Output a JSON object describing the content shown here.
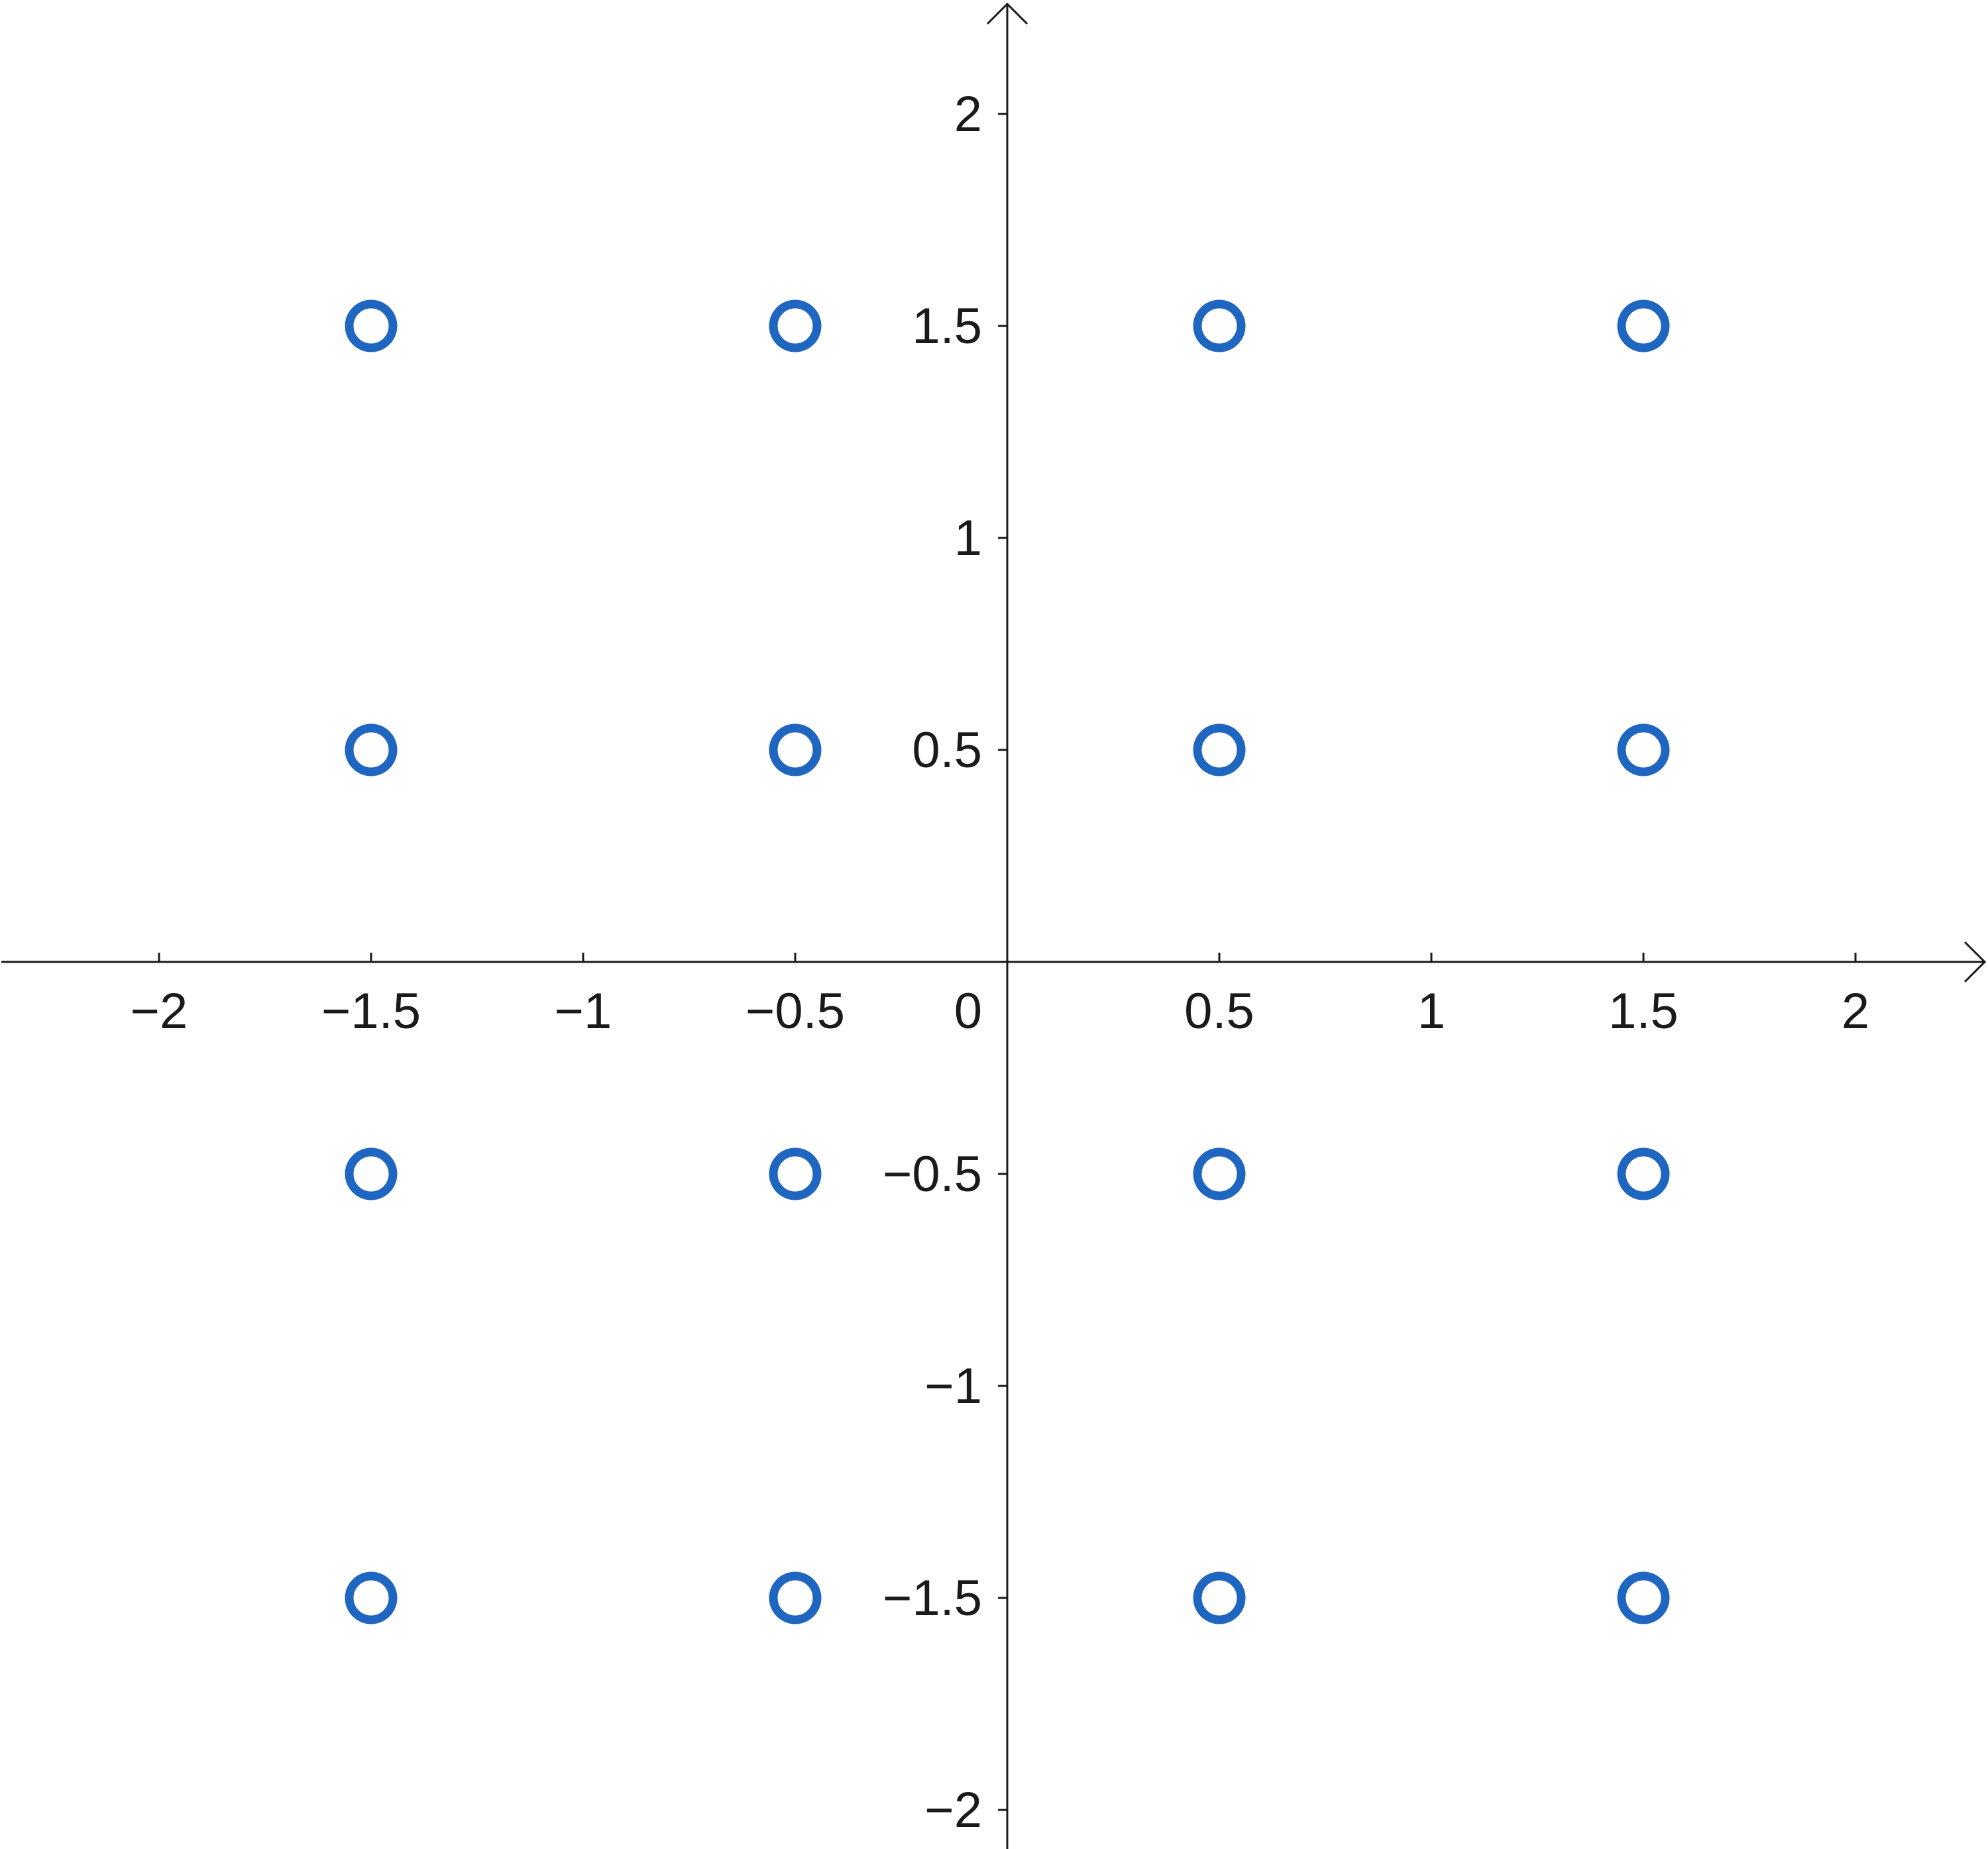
{
  "chart_data": {
    "type": "scatter",
    "title": "",
    "xlabel": "",
    "ylabel": "",
    "xlim": [
      -2.37,
      2.3
    ],
    "ylim": [
      -2.09,
      2.26
    ],
    "grid": false,
    "legend": "none",
    "marker": "open-circle",
    "colors": {
      "point": "#1f66c1",
      "axis": "#1a1a1a"
    },
    "x_ticks": [
      {
        "value": -2,
        "label": "−2"
      },
      {
        "value": -1.5,
        "label": "−1.5"
      },
      {
        "value": -1,
        "label": "−1"
      },
      {
        "value": -0.5,
        "label": "−0.5"
      },
      {
        "value": 0.5,
        "label": "0.5"
      },
      {
        "value": 1,
        "label": "1"
      },
      {
        "value": 1.5,
        "label": "1.5"
      },
      {
        "value": 2,
        "label": "2"
      }
    ],
    "y_ticks": [
      {
        "value": 2,
        "label": "2"
      },
      {
        "value": 1.5,
        "label": "1.5"
      },
      {
        "value": 1,
        "label": "1"
      },
      {
        "value": 0.5,
        "label": "0.5"
      },
      {
        "value": -0.5,
        "label": "−0.5"
      },
      {
        "value": -1,
        "label": "−1"
      },
      {
        "value": -1.5,
        "label": "−1.5"
      },
      {
        "value": -2,
        "label": "−2"
      }
    ],
    "origin_label": "0",
    "series": [
      {
        "points": [
          {
            "x": -1.5,
            "y": 1.5
          },
          {
            "x": -0.5,
            "y": 1.5
          },
          {
            "x": 0.5,
            "y": 1.5
          },
          {
            "x": 1.5,
            "y": 1.5
          },
          {
            "x": -1.5,
            "y": 0.5
          },
          {
            "x": -0.5,
            "y": 0.5
          },
          {
            "x": 0.5,
            "y": 0.5
          },
          {
            "x": 1.5,
            "y": 0.5
          },
          {
            "x": -1.5,
            "y": -0.5
          },
          {
            "x": -0.5,
            "y": -0.5
          },
          {
            "x": 0.5,
            "y": -0.5
          },
          {
            "x": 1.5,
            "y": -0.5
          },
          {
            "x": -1.5,
            "y": -1.5
          },
          {
            "x": -0.5,
            "y": -1.5
          },
          {
            "x": 0.5,
            "y": -1.5
          },
          {
            "x": 1.5,
            "y": -1.5
          }
        ]
      }
    ]
  }
}
